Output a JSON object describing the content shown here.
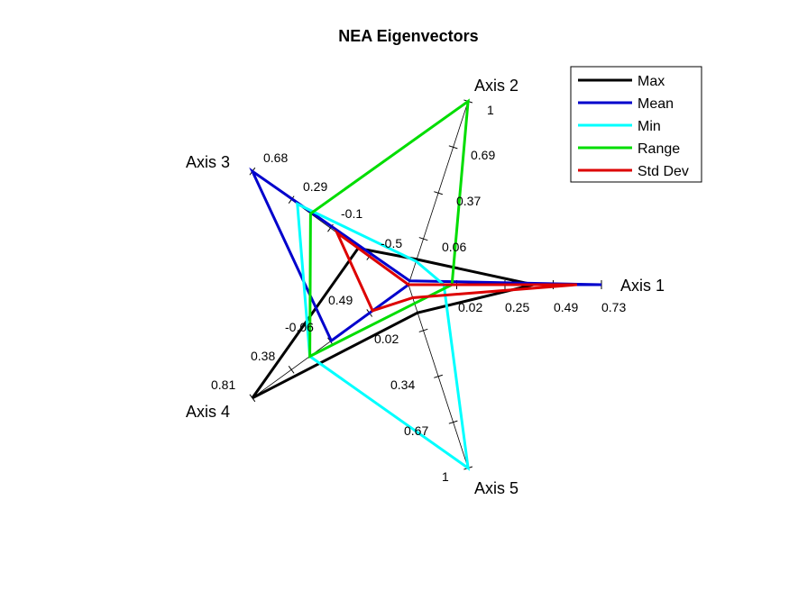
{
  "chart_data": {
    "type": "radar",
    "title": "NEA Eigenvectors",
    "axes": [
      {
        "label": "Axis 1",
        "ticks": [
          "0.02",
          "0.25",
          "0.49",
          "0.73"
        ]
      },
      {
        "label": "Axis 2",
        "ticks": [
          "0.06",
          "0.37",
          "0.69",
          "1"
        ]
      },
      {
        "label": "Axis 3",
        "ticks": [
          "-0.5",
          "-0.1",
          "0.29",
          "0.68"
        ]
      },
      {
        "label": "Axis 4",
        "ticks": [
          "-0.06",
          "0.38",
          "0.81"
        ]
      },
      {
        "label": "Axis 5",
        "ticks": [
          "0.02",
          "0.34",
          "0.67",
          "1"
        ]
      }
    ],
    "extra_tick_labels": [
      "0.49"
    ],
    "axis_min": [
      0.02,
      0.06,
      -0.5,
      -0.06,
      0.02
    ],
    "axis_max": [
      0.73,
      1,
      0.68,
      0.81,
      1
    ],
    "legend_position": "top-right",
    "series": [
      {
        "name": "Max",
        "color": "#000000",
        "values": [
          0.48,
          0.19,
          -0.12,
          0.81,
          0.17
        ]
      },
      {
        "name": "Mean",
        "color": "#0000cc",
        "values": [
          0.73,
          0.08,
          0.68,
          0.37,
          0.02
        ]
      },
      {
        "name": "Min",
        "color": "#00ffff",
        "values": [
          0.15,
          0.18,
          0.34,
          0.49,
          1
        ]
      },
      {
        "name": "Range",
        "color": "#00dd00",
        "values": [
          0.18,
          1,
          0.24,
          0.49,
          0.12
        ]
      },
      {
        "name": "Std Dev",
        "color": "#dd0000",
        "values": [
          0.64,
          0.06,
          0.04,
          0.14,
          0.09
        ]
      }
    ]
  }
}
